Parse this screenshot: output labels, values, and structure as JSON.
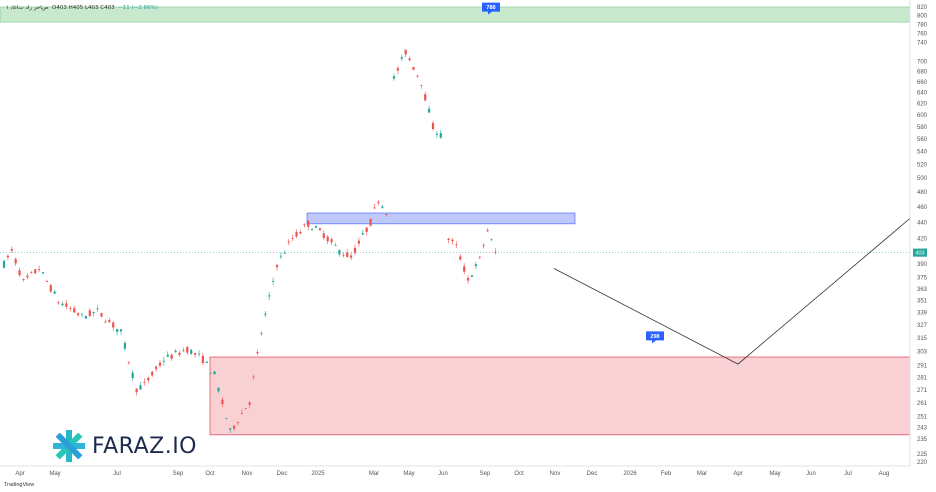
{
  "header": {
    "symbol_title": "۱ ﺹﺎﺧﺮ ﺭﺍﺩ ﺕﺎﻏﺎﺑ",
    "ohlc_text": "O403 H405 L403 C403",
    "change_text": "−11 (−2.66%)"
  },
  "logo": {
    "text": "FARAZ.IO"
  },
  "watermark": "TradingView",
  "colors": {
    "up": "#26a69a",
    "down": "#ef5350",
    "supply_zone": "#b7e1bf",
    "demand_zone": "#f8c6c9",
    "resistance_box": "#aebcf7",
    "badge": "#2962ff",
    "price_tag": "#26a69a"
  },
  "chart_data": {
    "type": "candlestick",
    "x_labels": [
      "Apr",
      "May",
      "Jul",
      "Sep",
      "Oct",
      "Nov",
      "Dec",
      "2025",
      "Mar",
      "May",
      "Jun",
      "Sep",
      "Oct",
      "Nov",
      "Dec",
      "2026",
      "Feb",
      "Mar",
      "Apr",
      "May",
      "Jun",
      "Jul",
      "Aug"
    ],
    "y_ticks": [
      220,
      225,
      235,
      243,
      251,
      261,
      271,
      281,
      291,
      303,
      315,
      327,
      339,
      351,
      363,
      375,
      390,
      405,
      420,
      440,
      460,
      480,
      500,
      520,
      540,
      560,
      580,
      600,
      620,
      640,
      660,
      680,
      700,
      740,
      760,
      780,
      800,
      820
    ],
    "y_scale": "log",
    "last_price": 403,
    "last_price_label": "403",
    "price_path_anchors": [
      {
        "t": 0,
        "p": 390
      },
      {
        "t": 2,
        "p": 405
      },
      {
        "t": 5,
        "p": 370
      },
      {
        "t": 9,
        "p": 385
      },
      {
        "t": 14,
        "p": 350
      },
      {
        "t": 20,
        "p": 335
      },
      {
        "t": 24,
        "p": 340
      },
      {
        "t": 30,
        "p": 320
      },
      {
        "t": 34,
        "p": 272
      },
      {
        "t": 36,
        "p": 275
      },
      {
        "t": 41,
        "p": 296
      },
      {
        "t": 47,
        "p": 305
      },
      {
        "t": 51,
        "p": 296
      },
      {
        "t": 54,
        "p": 283
      },
      {
        "t": 58,
        "p": 240
      },
      {
        "t": 63,
        "p": 262
      },
      {
        "t": 66,
        "p": 320
      },
      {
        "t": 70,
        "p": 390
      },
      {
        "t": 74,
        "p": 420
      },
      {
        "t": 78,
        "p": 438
      },
      {
        "t": 82,
        "p": 425
      },
      {
        "t": 86,
        "p": 405
      },
      {
        "t": 89,
        "p": 398
      },
      {
        "t": 94,
        "p": 440
      },
      {
        "t": 96,
        "p": 470
      },
      {
        "t": 98,
        "p": 455
      },
      {
        "t": 99,
        "p": 650
      },
      {
        "t": 103,
        "p": 720
      },
      {
        "t": 107,
        "p": 660
      },
      {
        "t": 110,
        "p": 580
      },
      {
        "t": 112,
        "p": 565
      },
      {
        "t": 113,
        "p": 425
      },
      {
        "t": 116,
        "p": 410
      },
      {
        "t": 119,
        "p": 372
      },
      {
        "t": 122,
        "p": 395
      },
      {
        "t": 124,
        "p": 430
      },
      {
        "t": 126,
        "p": 403
      }
    ],
    "zones": [
      {
        "name": "supply",
        "top": 820,
        "bottom": 785
      },
      {
        "name": "resistance",
        "top": 452,
        "bottom": 438
      },
      {
        "name": "demand",
        "top": 298,
        "bottom": 238
      }
    ],
    "levels": [
      {
        "label": "788",
        "price": 788
      },
      {
        "label": "298",
        "price": 298
      }
    ],
    "projection": [
      {
        "t": 127,
        "p": 385
      },
      {
        "t": 208,
        "p": 292
      },
      {
        "t": 268,
        "p": 445
      }
    ]
  }
}
